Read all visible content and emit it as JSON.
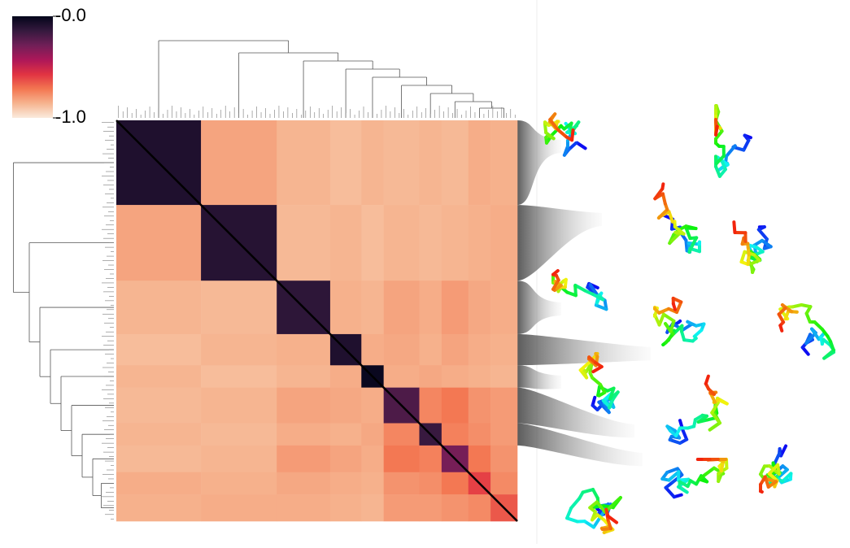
{
  "chart_data": {
    "type": "heatmap",
    "x_edges": [
      0,
      19,
      36,
      48,
      55,
      60,
      68,
      73,
      79,
      84,
      90
    ],
    "values": [
      [
        -0.08,
        -0.82,
        -0.86,
        -0.88,
        -0.86,
        -0.87,
        -0.86,
        -0.87,
        -0.84,
        -0.85
      ],
      [
        -0.82,
        -0.1,
        -0.87,
        -0.86,
        -0.88,
        -0.86,
        -0.87,
        -0.86,
        -0.85,
        -0.84
      ],
      [
        -0.86,
        -0.87,
        -0.12,
        -0.85,
        -0.86,
        -0.82,
        -0.84,
        -0.8,
        -0.83,
        -0.84
      ],
      [
        -0.88,
        -0.86,
        -0.85,
        -0.08,
        -0.84,
        -0.83,
        -0.85,
        -0.82,
        -0.84,
        -0.85
      ],
      [
        -0.86,
        -0.88,
        -0.86,
        -0.84,
        -0.02,
        -0.84,
        -0.83,
        -0.84,
        -0.85,
        -0.86
      ],
      [
        -0.87,
        -0.86,
        -0.82,
        -0.83,
        -0.84,
        -0.2,
        -0.75,
        -0.72,
        -0.78,
        -0.8
      ],
      [
        -0.86,
        -0.87,
        -0.84,
        -0.85,
        -0.83,
        -0.75,
        -0.15,
        -0.74,
        -0.77,
        -0.8
      ],
      [
        -0.87,
        -0.86,
        -0.8,
        -0.82,
        -0.84,
        -0.72,
        -0.74,
        -0.3,
        -0.72,
        -0.78
      ],
      [
        -0.84,
        -0.85,
        -0.83,
        -0.84,
        -0.85,
        -0.78,
        -0.77,
        -0.72,
        -0.6,
        -0.76
      ],
      [
        -0.85,
        -0.84,
        -0.84,
        -0.85,
        -0.86,
        -0.8,
        -0.8,
        -0.78,
        -0.76,
        -0.65
      ]
    ],
    "zlim": [
      -1,
      0
    ],
    "colormap": [
      "#faebdd",
      "#f6b48f",
      "#f37651",
      "#e13342",
      "#ad1759",
      "#701f57",
      "#35193e",
      "#03051a"
    ],
    "zticks": [
      {
        "value": -1,
        "label": "-1.0"
      },
      {
        "value": 0,
        "label": "-0.0"
      }
    ]
  }
}
